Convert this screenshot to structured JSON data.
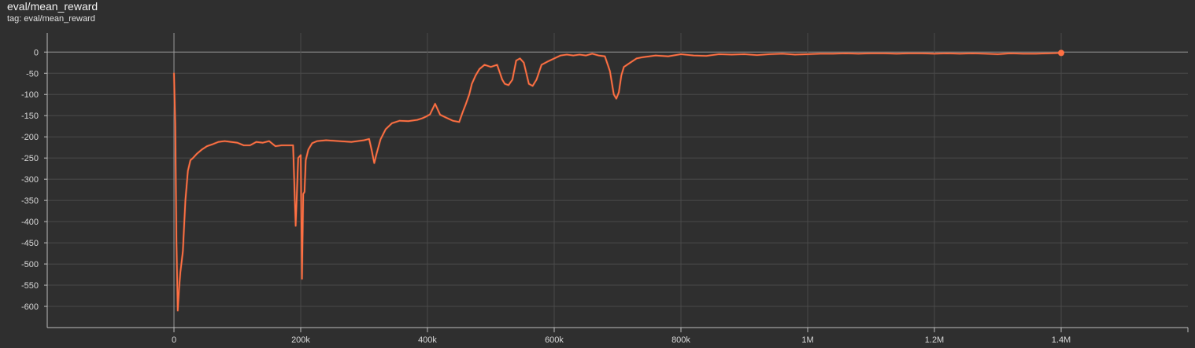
{
  "card": {
    "title": "eval/mean_reward",
    "tag": "tag: eval/mean_reward"
  },
  "colors": {
    "background": "#2f2f2f",
    "grid": "#4a4a4a",
    "axis": "#bdbdbd",
    "series": "#ff7043",
    "series_raw": "#8a4a35"
  },
  "chart_data": {
    "type": "line",
    "title": "",
    "xlabel": "",
    "ylabel": "",
    "xlim": [
      -200000,
      1600000
    ],
    "ylim": [
      -650,
      45
    ],
    "x_ticks": [
      0,
      200000,
      400000,
      600000,
      800000,
      1000000,
      1200000,
      1400000
    ],
    "x_tick_labels": [
      "0",
      "200k",
      "400k",
      "600k",
      "800k",
      "1M",
      "1.2M",
      "1.4M"
    ],
    "y_ticks": [
      0,
      -50,
      -100,
      -150,
      -200,
      -250,
      -300,
      -350,
      -400,
      -450,
      -500,
      -550,
      -600
    ],
    "y_tick_labels": [
      "0",
      "-50",
      "-100",
      "-150",
      "-200",
      "-250",
      "-300",
      "-350",
      "-400",
      "-450",
      "-500",
      "-550",
      "-600"
    ],
    "grid": true,
    "series": [
      {
        "x": [
          0,
          2000,
          4000,
          6000,
          8000,
          10000,
          14000,
          18000,
          22000,
          26000,
          30000,
          36000,
          44000,
          52000,
          60000,
          70000,
          80000,
          90000,
          100000,
          110000,
          120000,
          130000,
          140000,
          150000,
          160000,
          170000,
          180000,
          188000,
          192000,
          196000,
          200000,
          202000,
          204000,
          206000,
          208000,
          212000,
          218000,
          226000,
          240000,
          260000,
          280000,
          300000,
          308000,
          312000,
          316000,
          320000,
          326000,
          334000,
          344000,
          356000,
          370000,
          384000,
          392000,
          398000,
          404000,
          412000,
          420000,
          430000,
          440000,
          450000,
          456000,
          460000,
          466000,
          470000,
          476000,
          482000,
          490000,
          500000,
          510000,
          518000,
          522000,
          528000,
          534000,
          540000,
          546000,
          552000,
          560000,
          566000,
          572000,
          580000,
          590000,
          600000,
          610000,
          620000,
          630000,
          640000,
          650000,
          660000,
          670000,
          680000,
          688000,
          694000,
          698000,
          702000,
          706000,
          710000,
          720000,
          730000,
          740000,
          760000,
          780000,
          800000,
          820000,
          840000,
          860000,
          880000,
          900000,
          920000,
          940000,
          960000,
          980000,
          1000000,
          1020000,
          1040000,
          1060000,
          1080000,
          1100000,
          1120000,
          1140000,
          1160000,
          1180000,
          1200000,
          1220000,
          1240000,
          1260000,
          1280000,
          1300000,
          1320000,
          1340000,
          1360000,
          1380000,
          1400000
        ],
        "y": [
          -50,
          -170,
          -450,
          -610,
          -560,
          -520,
          -470,
          -350,
          -280,
          -255,
          -250,
          -240,
          -230,
          -222,
          -218,
          -212,
          -210,
          -212,
          -214,
          -220,
          -220,
          -212,
          -214,
          -210,
          -222,
          -220,
          -220,
          -220,
          -410,
          -250,
          -243,
          -535,
          -335,
          -330,
          -255,
          -230,
          -215,
          -210,
          -208,
          -210,
          -212,
          -208,
          -205,
          -232,
          -262,
          -238,
          -206,
          -182,
          -168,
          -162,
          -163,
          -160,
          -156,
          -152,
          -147,
          -122,
          -148,
          -155,
          -162,
          -165,
          -140,
          -125,
          -100,
          -75,
          -55,
          -40,
          -30,
          -35,
          -30,
          -65,
          -75,
          -78,
          -65,
          -20,
          -15,
          -25,
          -75,
          -80,
          -65,
          -30,
          -22,
          -15,
          -8,
          -6,
          -8,
          -6,
          -8,
          -4,
          -8,
          -10,
          -45,
          -100,
          -110,
          -95,
          -55,
          -35,
          -25,
          -15,
          -12,
          -8,
          -10,
          -5,
          -8,
          -9,
          -5,
          -6,
          -5,
          -7,
          -5,
          -4,
          -6,
          -5,
          -4,
          -4,
          -3,
          -4,
          -3,
          -3,
          -4,
          -3,
          -3,
          -4,
          -3,
          -4,
          -3,
          -4,
          -5,
          -3,
          -4,
          -4,
          -3,
          -2
        ]
      }
    ]
  }
}
